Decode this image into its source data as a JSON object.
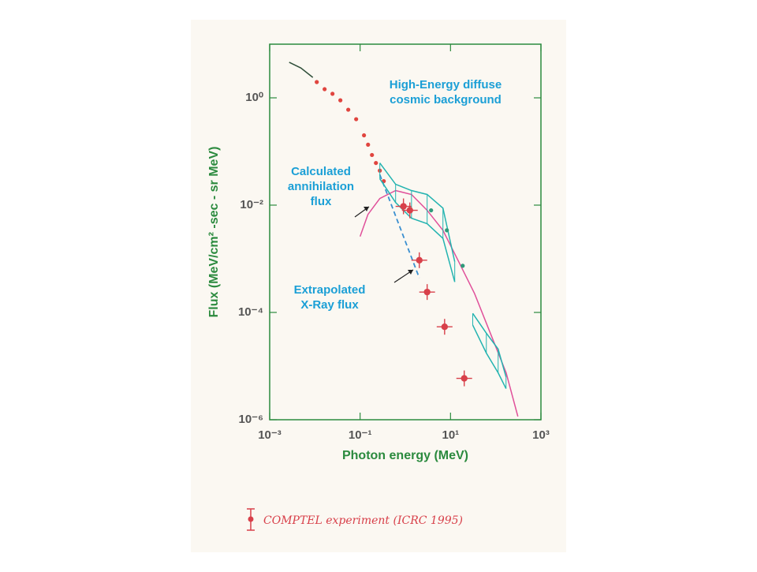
{
  "chart_data": {
    "type": "scatter",
    "x_label": "Photon energy (MeV)",
    "y_label": "Flux (MeV/cm² -sec - sr MeV)",
    "xscale": "log",
    "yscale": "log",
    "xlim": [
      0.001,
      1000
    ],
    "ylim": [
      1e-06,
      10
    ],
    "xticks": [
      {
        "value": 0.001,
        "label": "10⁻³"
      },
      {
        "value": 0.1,
        "label": "10⁻¹"
      },
      {
        "value": 10,
        "label": "10¹"
      },
      {
        "value": 1000,
        "label": "10³"
      }
    ],
    "yticks": [
      {
        "value": 1e-06,
        "label": "10⁻⁶"
      },
      {
        "value": 0.0001,
        "label": "10⁻⁴"
      },
      {
        "value": 0.01,
        "label": "10⁻²"
      },
      {
        "value": 1,
        "label": "10⁰"
      }
    ],
    "annotations": [
      {
        "lines": [
          "High-Energy diffuse",
          "cosmic background"
        ]
      },
      {
        "lines": [
          "Calculated",
          "annihilation",
          "flux"
        ]
      },
      {
        "lines": [
          "Extrapolated",
          "X-Ray flux"
        ]
      }
    ],
    "series": [
      {
        "type": "line",
        "color": "#2f4f3a",
        "x": [
          0.0027,
          0.0049,
          0.009
        ],
        "values": [
          4.6,
          3.6,
          2.4
        ]
      },
      {
        "type": "scatter",
        "color": "#e0453f",
        "x": [
          0.011,
          0.0164,
          0.0245,
          0.0366,
          0.0547,
          0.0818,
          0.122,
          0.15,
          0.183,
          0.224,
          0.273,
          0.334
        ],
        "values": [
          1.97,
          1.45,
          1.19,
          0.9,
          0.6,
          0.4,
          0.2,
          0.134,
          0.086,
          0.061,
          0.044,
          0.028
        ]
      },
      {
        "type": "line",
        "color": "#e0509a",
        "x": [
          0.1,
          0.149,
          0.273,
          0.61,
          1.37,
          3.04,
          6.8,
          15.2,
          34,
          76,
          170,
          309
        ],
        "values": [
          0.0026,
          0.0067,
          0.0133,
          0.0187,
          0.0158,
          0.008,
          0.0034,
          0.00088,
          0.000225,
          4.1e-05,
          7.5e-06,
          1.15e-06
        ]
      },
      {
        "type": "dashed",
        "color": "#3a8fd0",
        "x": [
          0.273,
          2.04
        ],
        "values": [
          0.037,
          0.00044
        ]
      },
      {
        "type": "band",
        "color": "#22b3b0",
        "x": [
          0.273,
          0.61,
          1.37,
          3.04,
          6.8,
          12.4
        ],
        "upper": [
          0.061,
          0.0245,
          0.0187,
          0.0158,
          0.0088,
          0.00088
        ],
        "lower": [
          0.031,
          0.0112,
          0.0057,
          0.0045,
          0.0024,
          0.00037
        ]
      },
      {
        "type": "band",
        "color": "#22b3b0",
        "x": [
          31,
          62,
          113,
          169
        ],
        "upper": [
          9.6e-05,
          4.1e-05,
          2.08e-05,
          6.3e-06
        ],
        "lower": [
          5.8e-05,
          1.75e-05,
          7.5e-06,
          3.8e-06
        ]
      },
      {
        "type": "scatter",
        "color": "#2e9a7a",
        "x": [
          3.72,
          8.3,
          18.6
        ],
        "values": [
          0.008,
          0.0034,
          0.00074
        ]
      },
      {
        "name": "COMPTEL experiment (ICRC 1995)",
        "type": "errorpoint",
        "color": "#d8404a",
        "x": [
          0.91,
          1.26,
          2.04,
          3.04,
          7.4,
          20.1
        ],
        "values": [
          0.0095,
          0.008,
          0.00094,
          0.00024,
          5.4e-05,
          5.9e-06
        ]
      }
    ]
  }
}
